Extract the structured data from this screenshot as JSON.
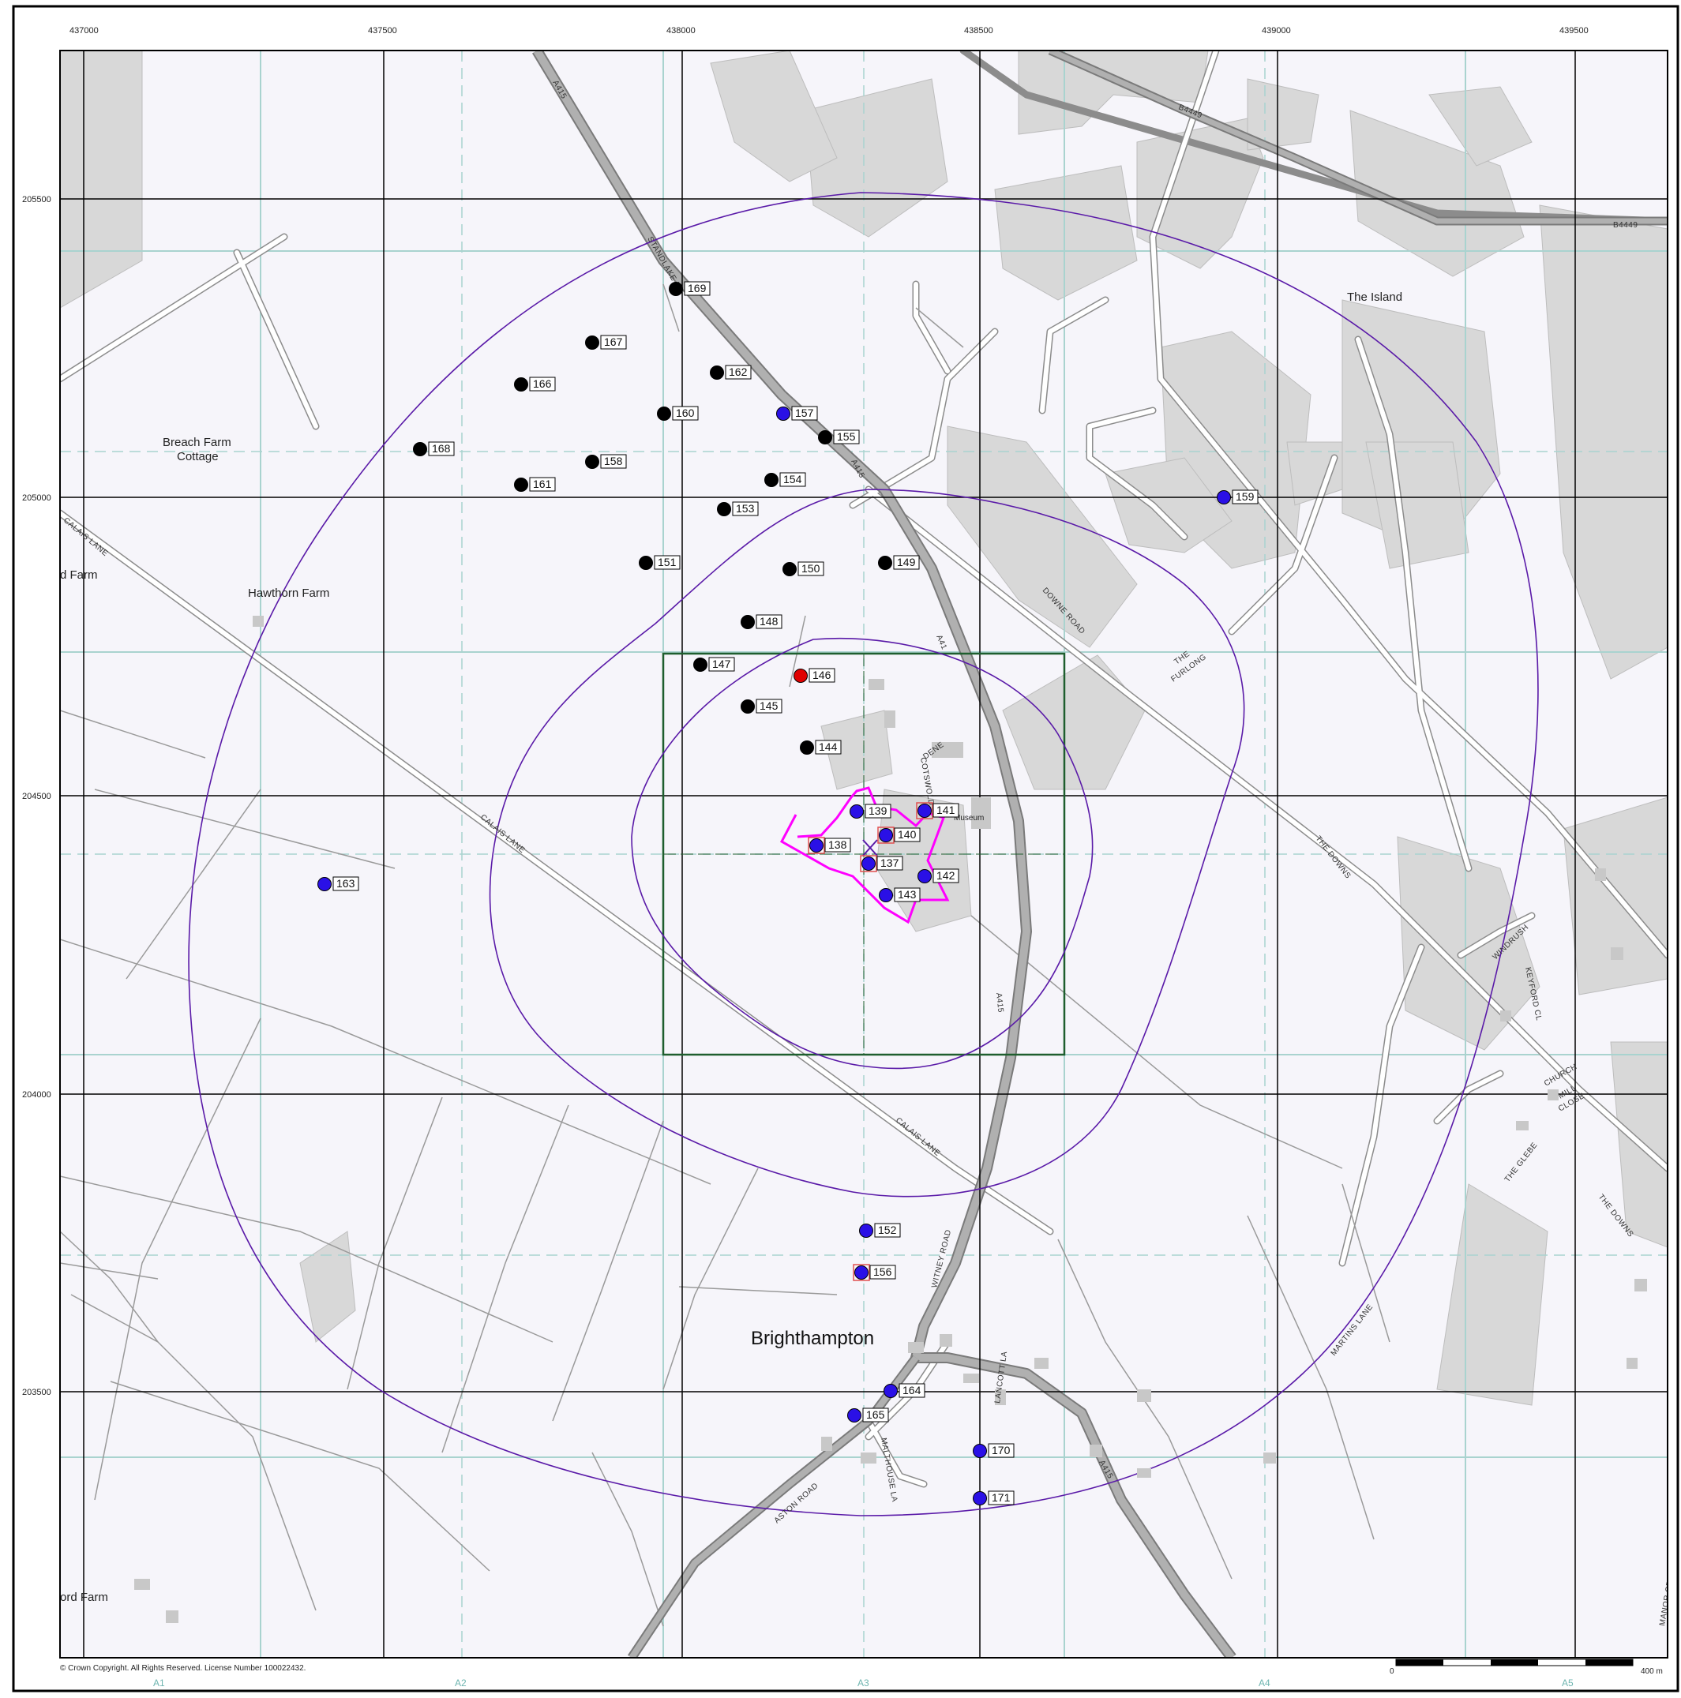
{
  "map": {
    "easting_ticks": [
      "437000",
      "437500",
      "438000",
      "438500",
      "439000",
      "439500"
    ],
    "northing_ticks": [
      "205500",
      "205000",
      "204500",
      "204000",
      "203500"
    ],
    "grid_squares": [
      "A1",
      "A2",
      "A3",
      "A4",
      "A5"
    ],
    "copyright": "© Crown Copyright. All Rights Reserved. License Number 100022432.",
    "scale": {
      "start": "0",
      "end": "400 m"
    },
    "place_names": {
      "breach_farm_1": "Breach Farm",
      "breach_farm_2": "Cottage",
      "hawthorn_farm": "Hawthorn Farm",
      "d_farm": "d Farm",
      "ord_farm": "ord Farm",
      "the_island": "The Island",
      "brighthampton": "Brighthampton",
      "museum": "Museum"
    },
    "road_names": {
      "a415_n": "A415",
      "a415_mid": "A415",
      "a415_mid2": "A41",
      "a415_s": "A415",
      "a415_s2": "A415",
      "b4449_1": "B4449",
      "b4449_2": "B4449",
      "calais_1": "CALAIS LANE",
      "calais_2": "CALAIS LANE",
      "calais_3": "CALAIS LANE",
      "standlake": "STANDLAKE RD",
      "downe": "DOWNE ROAD",
      "the_downs_1": "THE DOWNS",
      "the_downs_2": "THE DOWNS",
      "witney": "WITNEY ROAD",
      "aston": "ASTON ROAD",
      "malthouse": "MALTHOUSE LA",
      "lancott": "LANCOTT LA",
      "martins": "MARTINS LANE",
      "the_glebe": "THE GLEBE",
      "church_mill_1": "CHURCH",
      "church_mill_2": "MILL",
      "church_mill_3": "CLOSE",
      "furlong_1": "THE",
      "furlong_2": "FURLONG",
      "windrush": "WINDRUSH",
      "keyford": "KEYFORD CL",
      "manor": "MANOR CR",
      "dene": "DENE",
      "cotswold": "COTSWOLD"
    },
    "points": [
      {
        "id": "137",
        "type": "blue",
        "marked": true
      },
      {
        "id": "138",
        "type": "blue",
        "marked": true
      },
      {
        "id": "139",
        "type": "blue",
        "marked": false
      },
      {
        "id": "140",
        "type": "blue",
        "marked": true
      },
      {
        "id": "141",
        "type": "blue",
        "marked": true
      },
      {
        "id": "142",
        "type": "blue",
        "marked": false
      },
      {
        "id": "143",
        "type": "blue",
        "marked": false
      },
      {
        "id": "144",
        "type": "black",
        "marked": false
      },
      {
        "id": "145",
        "type": "black",
        "marked": false
      },
      {
        "id": "146",
        "type": "red",
        "marked": false
      },
      {
        "id": "147",
        "type": "black",
        "marked": false
      },
      {
        "id": "148",
        "type": "black",
        "marked": false
      },
      {
        "id": "149",
        "type": "black",
        "marked": false
      },
      {
        "id": "150",
        "type": "black",
        "marked": false
      },
      {
        "id": "151",
        "type": "black",
        "marked": false
      },
      {
        "id": "152",
        "type": "blue",
        "marked": false
      },
      {
        "id": "153",
        "type": "black",
        "marked": false
      },
      {
        "id": "154",
        "type": "black",
        "marked": false
      },
      {
        "id": "155",
        "type": "black",
        "marked": false
      },
      {
        "id": "156",
        "type": "blue",
        "marked": true
      },
      {
        "id": "157",
        "type": "blue",
        "marked": false
      },
      {
        "id": "158",
        "type": "black",
        "marked": false
      },
      {
        "id": "159",
        "type": "blue",
        "marked": false
      },
      {
        "id": "160",
        "type": "black",
        "marked": false
      },
      {
        "id": "161",
        "type": "black",
        "marked": false
      },
      {
        "id": "162",
        "type": "black",
        "marked": false
      },
      {
        "id": "163",
        "type": "blue",
        "marked": false
      },
      {
        "id": "164",
        "type": "blue",
        "marked": false
      },
      {
        "id": "165",
        "type": "blue",
        "marked": false
      },
      {
        "id": "166",
        "type": "black",
        "marked": false
      },
      {
        "id": "167",
        "type": "black",
        "marked": false
      },
      {
        "id": "168",
        "type": "black",
        "marked": false
      },
      {
        "id": "169",
        "type": "black",
        "marked": false
      },
      {
        "id": "170",
        "type": "blue",
        "marked": false
      },
      {
        "id": "171",
        "type": "blue",
        "marked": false
      }
    ],
    "colors": {
      "background": "#f6f5fa",
      "grid_major": "#000000",
      "grid_minor": "#a9d3cf",
      "buffer_ring": "#5a1aa8",
      "site_boundary": "#ff00ff",
      "study_box": "#1e5e2e",
      "point_blue": "#2a10e6",
      "point_black": "#000000",
      "point_red": "#e00000",
      "road_main": "#9a9a9a",
      "landcover": "#d6d6d6"
    }
  }
}
